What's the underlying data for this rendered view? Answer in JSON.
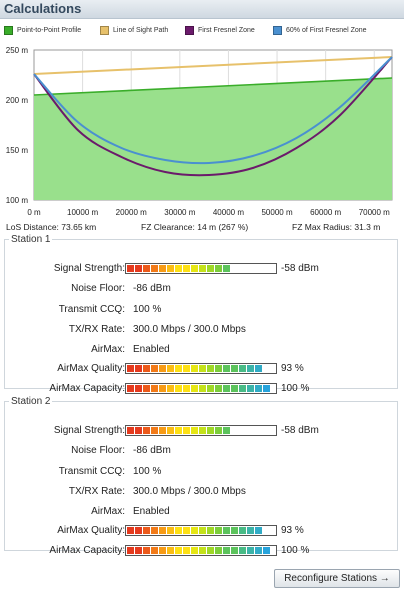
{
  "section_title": "Calculations",
  "legend": [
    {
      "label": "Point-to-Point Profile",
      "color": "#3aad2a"
    },
    {
      "label": "Line of Sight Path",
      "color": "#e7c16b"
    },
    {
      "label": "First Fresnel Zone",
      "color": "#6b1a6b"
    },
    {
      "label": "60% of First Fresnel Zone",
      "color": "#4a90d0"
    }
  ],
  "chart_data": {
    "type": "line",
    "xlim": [
      0,
      73650
    ],
    "ylim": [
      100,
      250
    ],
    "x_ticks": [
      "0 m",
      "10000 m",
      "20000 m",
      "30000 m",
      "40000 m",
      "50000 m",
      "60000 m",
      "70000 m"
    ],
    "y_ticks": [
      "250 m",
      "200 m",
      "150 m",
      "100 m"
    ],
    "series": [
      {
        "name": "Point-to-Point Profile",
        "x": [
          0,
          73650
        ],
        "y": [
          205,
          222
        ]
      },
      {
        "name": "Line of Sight Path",
        "x": [
          0,
          73650
        ],
        "y": [
          226,
          243
        ]
      },
      {
        "name": "First Fresnel Zone",
        "x": [
          0,
          9000,
          18000,
          27000,
          36000,
          45000,
          54000,
          63000,
          73650
        ],
        "y": [
          226,
          170,
          143,
          128,
          125,
          132,
          152,
          185,
          243
        ]
      },
      {
        "name": "60% of First Fresnel Zone",
        "x": [
          0,
          9000,
          18000,
          27000,
          36000,
          45000,
          54000,
          63000,
          73650
        ],
        "y": [
          226,
          178,
          152,
          140,
          137,
          144,
          162,
          193,
          243
        ]
      }
    ]
  },
  "info": {
    "los_distance": "LoS Distance: 73.65 km",
    "fz_clearance": "FZ Clearance: 14 m  (267 %)",
    "fz_max_radius": "FZ Max Radius: 31.3 m"
  },
  "stations": [
    {
      "title": "Station 1",
      "signal_label": "Signal Strength:",
      "signal_value": "-58 dBm",
      "signal_level": 0.72,
      "noise_label": "Noise Floor:",
      "noise_value": "-86 dBm",
      "ccq_label": "Transmit CCQ:",
      "ccq_value": "100 %",
      "rate_label": "TX/RX Rate:",
      "rate_value": "300.0 Mbps / 300.0 Mbps",
      "airmax_label": "AirMax:",
      "airmax_value": "Enabled",
      "quality_label": "AirMax Quality:",
      "quality_value": "93 %",
      "quality_level": 0.93,
      "capacity_label": "AirMax Capacity:",
      "capacity_value": "100 %",
      "capacity_level": 1.0
    },
    {
      "title": "Station 2",
      "signal_label": "Signal Strength:",
      "signal_value": "-58 dBm",
      "signal_level": 0.72,
      "noise_label": "Noise Floor:",
      "noise_value": "-86 dBm",
      "ccq_label": "Transmit CCQ:",
      "ccq_value": "100 %",
      "rate_label": "TX/RX Rate:",
      "rate_value": "300.0 Mbps / 300.0 Mbps",
      "airmax_label": "AirMax:",
      "airmax_value": "Enabled",
      "quality_label": "AirMax Quality:",
      "quality_value": "93 %",
      "quality_level": 0.93,
      "capacity_label": "AirMax Capacity:",
      "capacity_value": "100 %",
      "capacity_level": 1.0
    }
  ],
  "reconfigure_button": "Reconfigure Stations →"
}
